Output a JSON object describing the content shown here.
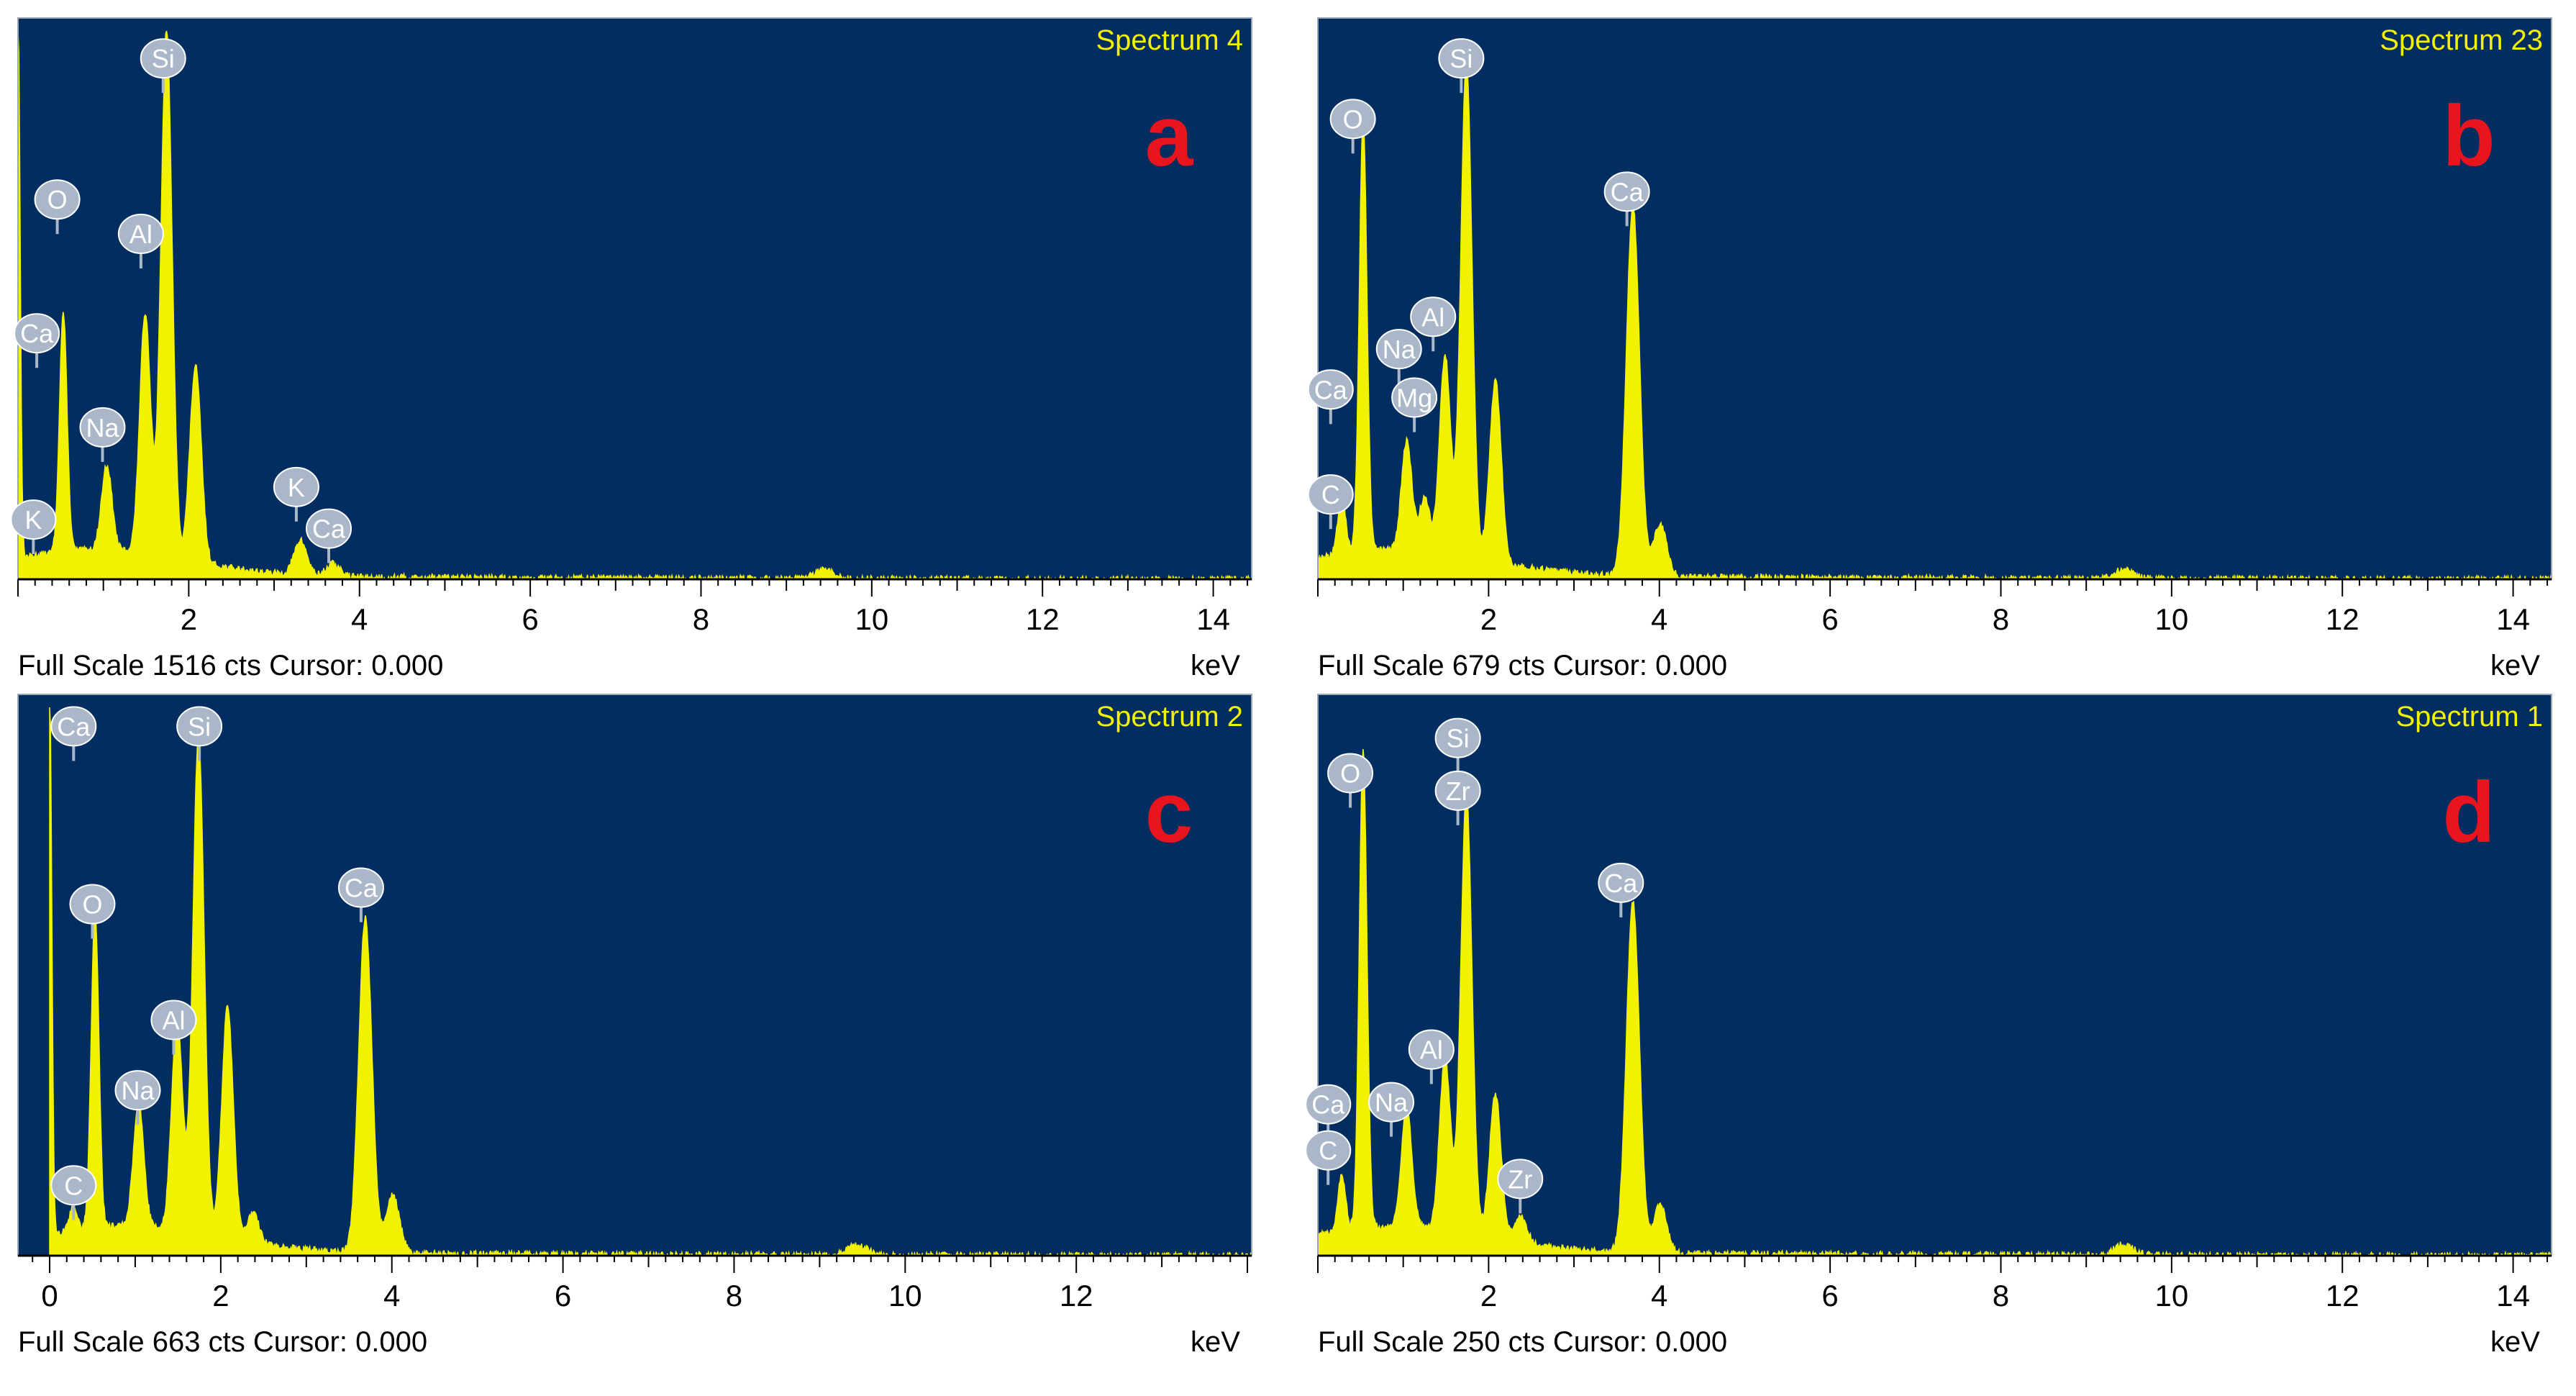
{
  "chart_data": [
    {
      "panel_letter": "a",
      "type": "area",
      "title": "Spectrum 4",
      "status": "Full Scale 1516 cts Cursor: 0.000",
      "xlabel": "keV",
      "xlim": [
        0.0,
        14.45
      ],
      "full_scale": 1516,
      "ticks": [
        2,
        4,
        6,
        8,
        10,
        12,
        14
      ],
      "tick_labels": [
        "2",
        "4",
        "6",
        "8",
        "10",
        "12",
        "14"
      ],
      "peaks": [
        {
          "kev": 0.0,
          "cts": 1516
        },
        {
          "kev": 0.53,
          "cts": 660
        },
        {
          "kev": 1.04,
          "cts": 235
        },
        {
          "kev": 1.49,
          "cts": 665
        },
        {
          "kev": 1.74,
          "cts": 1452
        },
        {
          "kev": 2.08,
          "cts": 540
        },
        {
          "kev": 3.31,
          "cts": 95
        },
        {
          "kev": 3.69,
          "cts": 35
        },
        {
          "kev": 9.44,
          "cts": 24
        }
      ],
      "element_labels": [
        {
          "label": "Si",
          "kev": 1.7,
          "cts": 1440
        },
        {
          "label": "O",
          "kev": 0.46,
          "cts": 1050
        },
        {
          "label": "Al",
          "kev": 1.44,
          "cts": 955
        },
        {
          "label": "Ca",
          "kev": 0.22,
          "cts": 680
        },
        {
          "label": "Na",
          "kev": 0.99,
          "cts": 420
        },
        {
          "label": "K",
          "kev": 3.26,
          "cts": 255
        },
        {
          "label": "K",
          "kev": 0.18,
          "cts": 165
        },
        {
          "label": "Ca",
          "kev": 3.64,
          "cts": 140
        }
      ],
      "panel_letter_color": "#e8141e"
    },
    {
      "panel_letter": "b",
      "type": "area",
      "title": "Spectrum 23",
      "status": "Full Scale 679 cts Cursor: 0.000",
      "xlabel": "keV",
      "xlim": [
        0.0,
        14.45
      ],
      "full_scale": 679,
      "ticks": [
        2,
        4,
        6,
        8,
        10,
        12,
        14
      ],
      "tick_labels": [
        "2",
        "4",
        "6",
        "8",
        "10",
        "12",
        "14"
      ],
      "peaks": [
        {
          "kev": 0.28,
          "cts": 75
        },
        {
          "kev": 0.53,
          "cts": 535
        },
        {
          "kev": 1.04,
          "cts": 135
        },
        {
          "kev": 1.25,
          "cts": 65
        },
        {
          "kev": 1.49,
          "cts": 245
        },
        {
          "kev": 1.74,
          "cts": 615
        },
        {
          "kev": 2.08,
          "cts": 225
        },
        {
          "kev": 3.69,
          "cts": 460
        },
        {
          "kev": 4.01,
          "cts": 65
        },
        {
          "kev": 9.44,
          "cts": 12
        }
      ],
      "element_labels": [
        {
          "label": "Si",
          "kev": 1.68,
          "cts": 645
        },
        {
          "label": "O",
          "kev": 0.41,
          "cts": 570
        },
        {
          "label": "Ca",
          "kev": 3.62,
          "cts": 480
        },
        {
          "label": "Al",
          "kev": 1.35,
          "cts": 325
        },
        {
          "label": "Na",
          "kev": 0.95,
          "cts": 285
        },
        {
          "label": "Ca",
          "kev": 0.15,
          "cts": 235
        },
        {
          "label": "Mg",
          "kev": 1.13,
          "cts": 225
        },
        {
          "label": "C",
          "kev": 0.15,
          "cts": 105
        }
      ],
      "panel_letter_color": "#e8141e"
    },
    {
      "panel_letter": "c",
      "type": "area",
      "title": "Spectrum 2",
      "status": "Full Scale 663 cts Cursor: 0.000",
      "xlabel": "keV",
      "xlim": [
        -0.37,
        14.05
      ],
      "full_scale": 663,
      "ticks": [
        0,
        2,
        4,
        6,
        8,
        10,
        12
      ],
      "tick_labels": [
        "0",
        "2",
        "4",
        "6",
        "8",
        "10",
        "12"
      ],
      "peaks": [
        {
          "kev": 0.0,
          "cts": 663
        },
        {
          "kev": 0.28,
          "cts": 30
        },
        {
          "kev": 0.53,
          "cts": 385
        },
        {
          "kev": 1.04,
          "cts": 150
        },
        {
          "kev": 1.49,
          "cts": 255
        },
        {
          "kev": 1.74,
          "cts": 603
        },
        {
          "kev": 2.08,
          "cts": 280
        },
        {
          "kev": 2.38,
          "cts": 35
        },
        {
          "kev": 3.69,
          "cts": 405
        },
        {
          "kev": 4.01,
          "cts": 70
        },
        {
          "kev": 9.44,
          "cts": 13
        }
      ],
      "element_labels": [
        {
          "label": "Ca",
          "kev": 0.28,
          "cts": 640
        },
        {
          "label": "Si",
          "kev": 1.75,
          "cts": 640
        },
        {
          "label": "O",
          "kev": 0.5,
          "cts": 425
        },
        {
          "label": "Ca",
          "kev": 3.64,
          "cts": 445
        },
        {
          "label": "Al",
          "kev": 1.45,
          "cts": 285
        },
        {
          "label": "Na",
          "kev": 1.03,
          "cts": 200
        },
        {
          "label": "C",
          "kev": 0.28,
          "cts": 85
        }
      ],
      "panel_letter_color": "#e8141e"
    },
    {
      "panel_letter": "d",
      "type": "area",
      "title": "Spectrum 1",
      "status": "Full Scale 250 cts Cursor: 0.000",
      "xlabel": "keV",
      "xlim": [
        0.0,
        14.45
      ],
      "full_scale": 250,
      "ticks": [
        2,
        4,
        6,
        8,
        10,
        12,
        14
      ],
      "tick_labels": [
        "2",
        "4",
        "6",
        "8",
        "10",
        "12",
        "14"
      ],
      "peaks": [
        {
          "kev": 0.28,
          "cts": 25
        },
        {
          "kev": 0.53,
          "cts": 218
        },
        {
          "kev": 1.04,
          "cts": 55
        },
        {
          "kev": 1.49,
          "cts": 78
        },
        {
          "kev": 1.74,
          "cts": 200
        },
        {
          "kev": 2.08,
          "cts": 66
        },
        {
          "kev": 2.38,
          "cts": 12
        },
        {
          "kev": 3.69,
          "cts": 160
        },
        {
          "kev": 4.01,
          "cts": 22
        },
        {
          "kev": 9.44,
          "cts": 5
        }
      ],
      "element_labels": [
        {
          "label": "Si",
          "kev": 1.64,
          "cts": 236
        },
        {
          "label": "O",
          "kev": 0.38,
          "cts": 220
        },
        {
          "label": "Zr",
          "kev": 1.64,
          "cts": 212
        },
        {
          "label": "Ca",
          "kev": 3.55,
          "cts": 170
        },
        {
          "label": "Al",
          "kev": 1.33,
          "cts": 94
        },
        {
          "label": "Na",
          "kev": 0.86,
          "cts": 70
        },
        {
          "label": "Ca",
          "kev": 0.12,
          "cts": 69
        },
        {
          "label": "C",
          "kev": 0.12,
          "cts": 48
        },
        {
          "label": "Zr",
          "kev": 2.37,
          "cts": 35
        }
      ],
      "panel_letter_color": "#e8141e"
    }
  ],
  "colors": {
    "plot_background": "#012d60",
    "spectrum_fill": "#f2f200",
    "title_text": "#f2f200",
    "label_badge_fill": "#a9b7c9",
    "label_badge_text": "#ffffff"
  }
}
